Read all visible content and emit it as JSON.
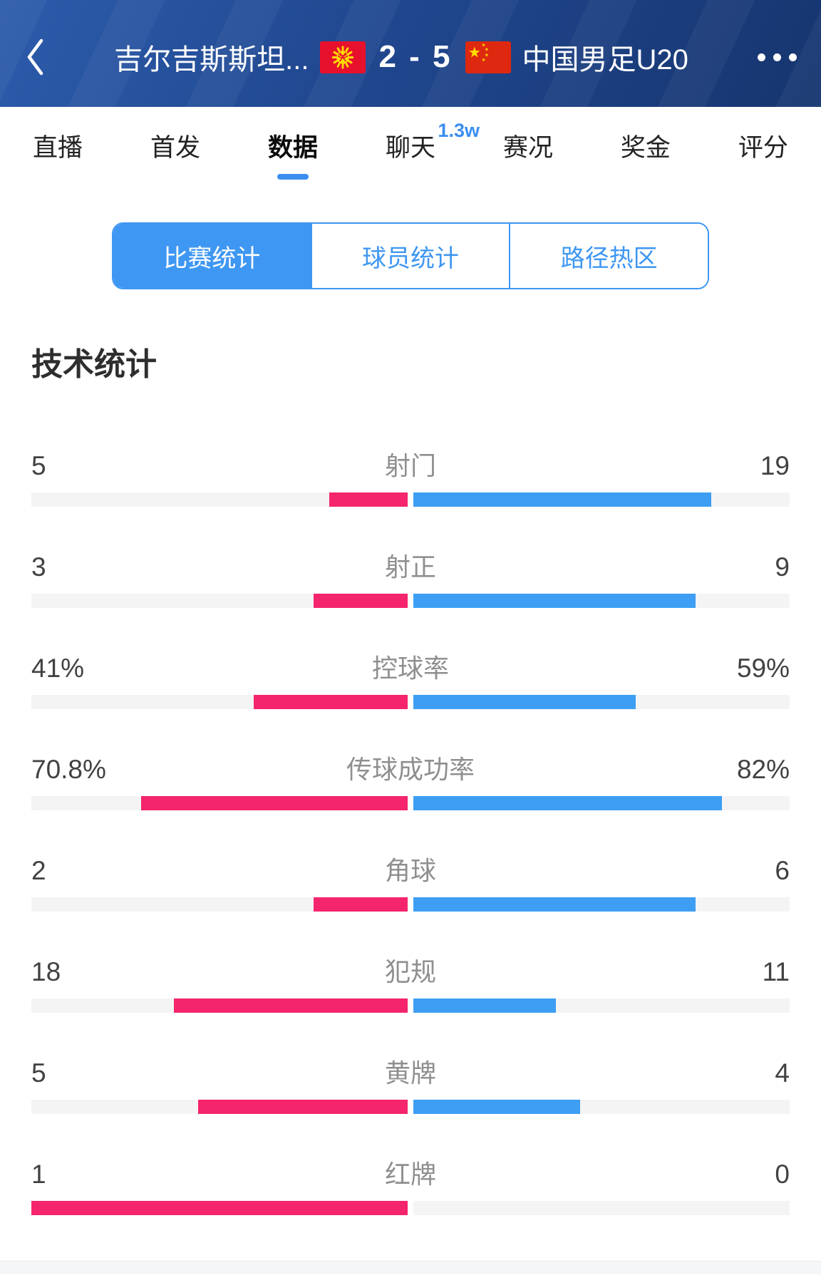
{
  "header": {
    "team_home": "吉尔吉斯斯坦...",
    "score": "2 - 5",
    "team_away": "中国男足U20",
    "home_flag": "kyrgyzstan-flag",
    "away_flag": "china-flag",
    "bg_color": "#1f4792"
  },
  "tabs": {
    "accent_color": "#3b8ef0",
    "items": [
      {
        "label": "直播",
        "active": false,
        "badge": ""
      },
      {
        "label": "首发",
        "active": false,
        "badge": ""
      },
      {
        "label": "数据",
        "active": true,
        "badge": ""
      },
      {
        "label": "聊天",
        "active": false,
        "badge": "1.3w"
      },
      {
        "label": "赛况",
        "active": false,
        "badge": ""
      },
      {
        "label": "奖金",
        "active": false,
        "badge": ""
      },
      {
        "label": "评分",
        "active": false,
        "badge": ""
      }
    ]
  },
  "subtabs": {
    "accent_color": "#3e97f2",
    "items": [
      {
        "label": "比赛统计",
        "active": true
      },
      {
        "label": "球员统计",
        "active": false
      },
      {
        "label": "路径热区",
        "active": false
      }
    ]
  },
  "section_title": "技术统计",
  "stats": {
    "home_color": "#f4246d",
    "away_color": "#3d9ef4",
    "track_color": "#f4f4f4",
    "rows": [
      {
        "label": "射门",
        "home": "5",
        "away": "19",
        "home_ratio": 0.208,
        "away_ratio": 0.792
      },
      {
        "label": "射正",
        "home": "3",
        "away": "9",
        "home_ratio": 0.25,
        "away_ratio": 0.75
      },
      {
        "label": "控球率",
        "home": "41%",
        "away": "59%",
        "home_ratio": 0.41,
        "away_ratio": 0.59
      },
      {
        "label": "传球成功率",
        "home": "70.8%",
        "away": "82%",
        "home_ratio": 0.708,
        "away_ratio": 0.82
      },
      {
        "label": "角球",
        "home": "2",
        "away": "6",
        "home_ratio": 0.25,
        "away_ratio": 0.75
      },
      {
        "label": "犯规",
        "home": "18",
        "away": "11",
        "home_ratio": 0.621,
        "away_ratio": 0.379
      },
      {
        "label": "黄牌",
        "home": "5",
        "away": "4",
        "home_ratio": 0.556,
        "away_ratio": 0.444
      },
      {
        "label": "红牌",
        "home": "1",
        "away": "0",
        "home_ratio": 1,
        "away_ratio": 0
      }
    ]
  }
}
